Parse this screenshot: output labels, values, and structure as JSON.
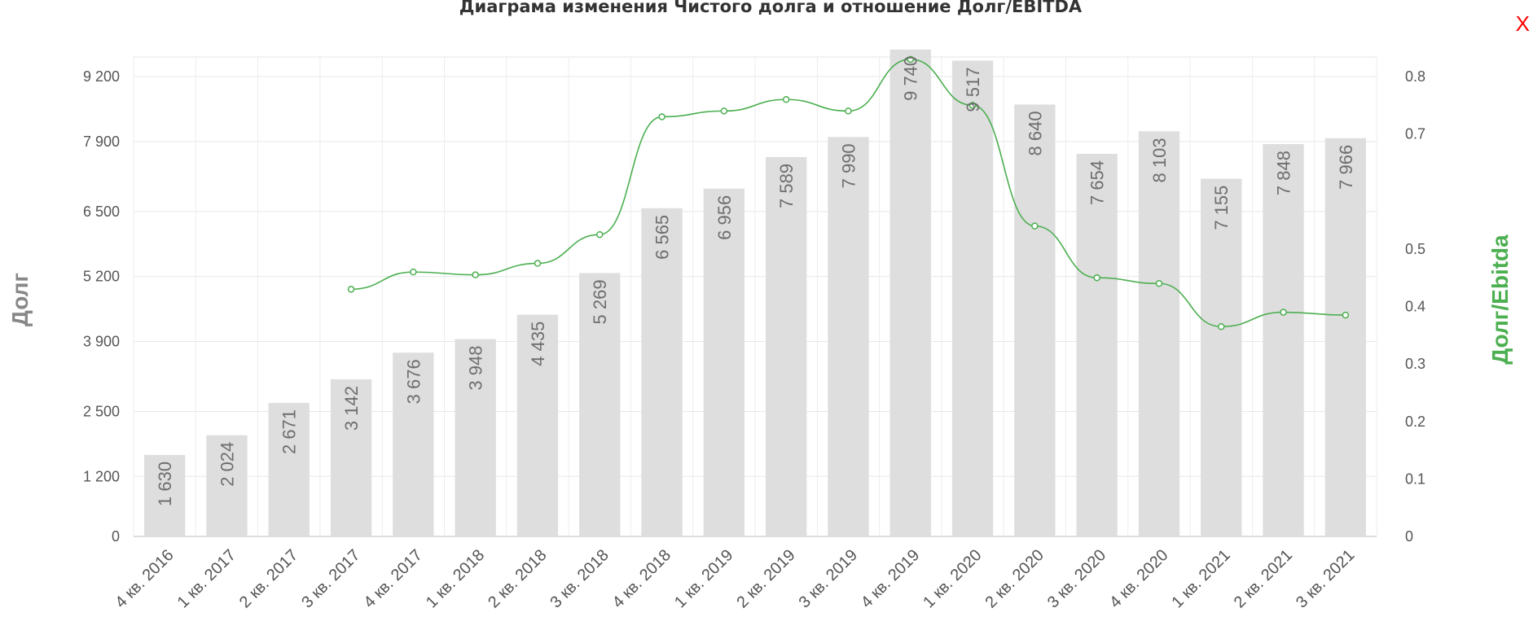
{
  "title": "Диаграма изменения Чистого долга и отношение Долг/EBITDA",
  "close_label": "X",
  "chart_data": {
    "type": "bar",
    "title": "Диаграма изменения Чистого долга и отношение Долг/EBITDA",
    "categories": [
      "4 кв. 2016",
      "1 кв. 2017",
      "2 кв. 2017",
      "3 кв. 2017",
      "4 кв. 2017",
      "1 кв. 2018",
      "2 кв. 2018",
      "3 кв. 2018",
      "4 кв. 2018",
      "1 кв. 2019",
      "2 кв. 2019",
      "3 кв. 2019",
      "4 кв. 2019",
      "1 кв. 2020",
      "2 кв. 2020",
      "3 кв. 2020",
      "4 кв. 2020",
      "1 кв. 2021",
      "2 кв. 2021",
      "3 кв. 2021"
    ],
    "series": [
      {
        "name": "Долг",
        "type": "bar",
        "axis": "left",
        "color": "#dedede",
        "values": [
          1630,
          2024,
          2671,
          3142,
          3676,
          3948,
          4435,
          5269,
          6565,
          6956,
          7589,
          7990,
          9740,
          9517,
          8640,
          7654,
          8103,
          7155,
          7848,
          7966
        ],
        "labels": [
          "1 630",
          "2 024",
          "2 671",
          "3 142",
          "3 676",
          "3 948",
          "4 435",
          "5 269",
          "6 565",
          "6 956",
          "7 589",
          "7 990",
          "9 740",
          "9 517",
          "8 640",
          "7 654",
          "8 103",
          "7 155",
          "7 848",
          "7 966"
        ]
      },
      {
        "name": "Долг/Ebitda",
        "type": "line",
        "axis": "right",
        "color": "#4caf50",
        "values": [
          null,
          null,
          null,
          0.43,
          0.46,
          0.455,
          0.475,
          0.525,
          0.73,
          0.74,
          0.76,
          0.74,
          0.83,
          0.75,
          0.54,
          0.45,
          0.44,
          0.365,
          0.39,
          0.385
        ]
      }
    ],
    "left_axis": {
      "label": "Долг",
      "ticks": [
        0,
        1200,
        2500,
        3900,
        5200,
        6500,
        7900,
        9200
      ],
      "tick_labels": [
        "0",
        "1 200",
        "2 500",
        "3 900",
        "5 200",
        "6 500",
        "7 900",
        "9 200"
      ]
    },
    "right_axis": {
      "label": "Долг/Ebitda",
      "ticks": [
        0,
        0.1,
        0.2,
        0.3,
        0.4,
        0.5,
        0.7,
        0.8
      ],
      "tick_labels": [
        "0",
        "0.1",
        "0.2",
        "0.3",
        "0.4",
        "0.5",
        "0.7",
        "0.8"
      ]
    },
    "grid": true,
    "legend": "none"
  }
}
